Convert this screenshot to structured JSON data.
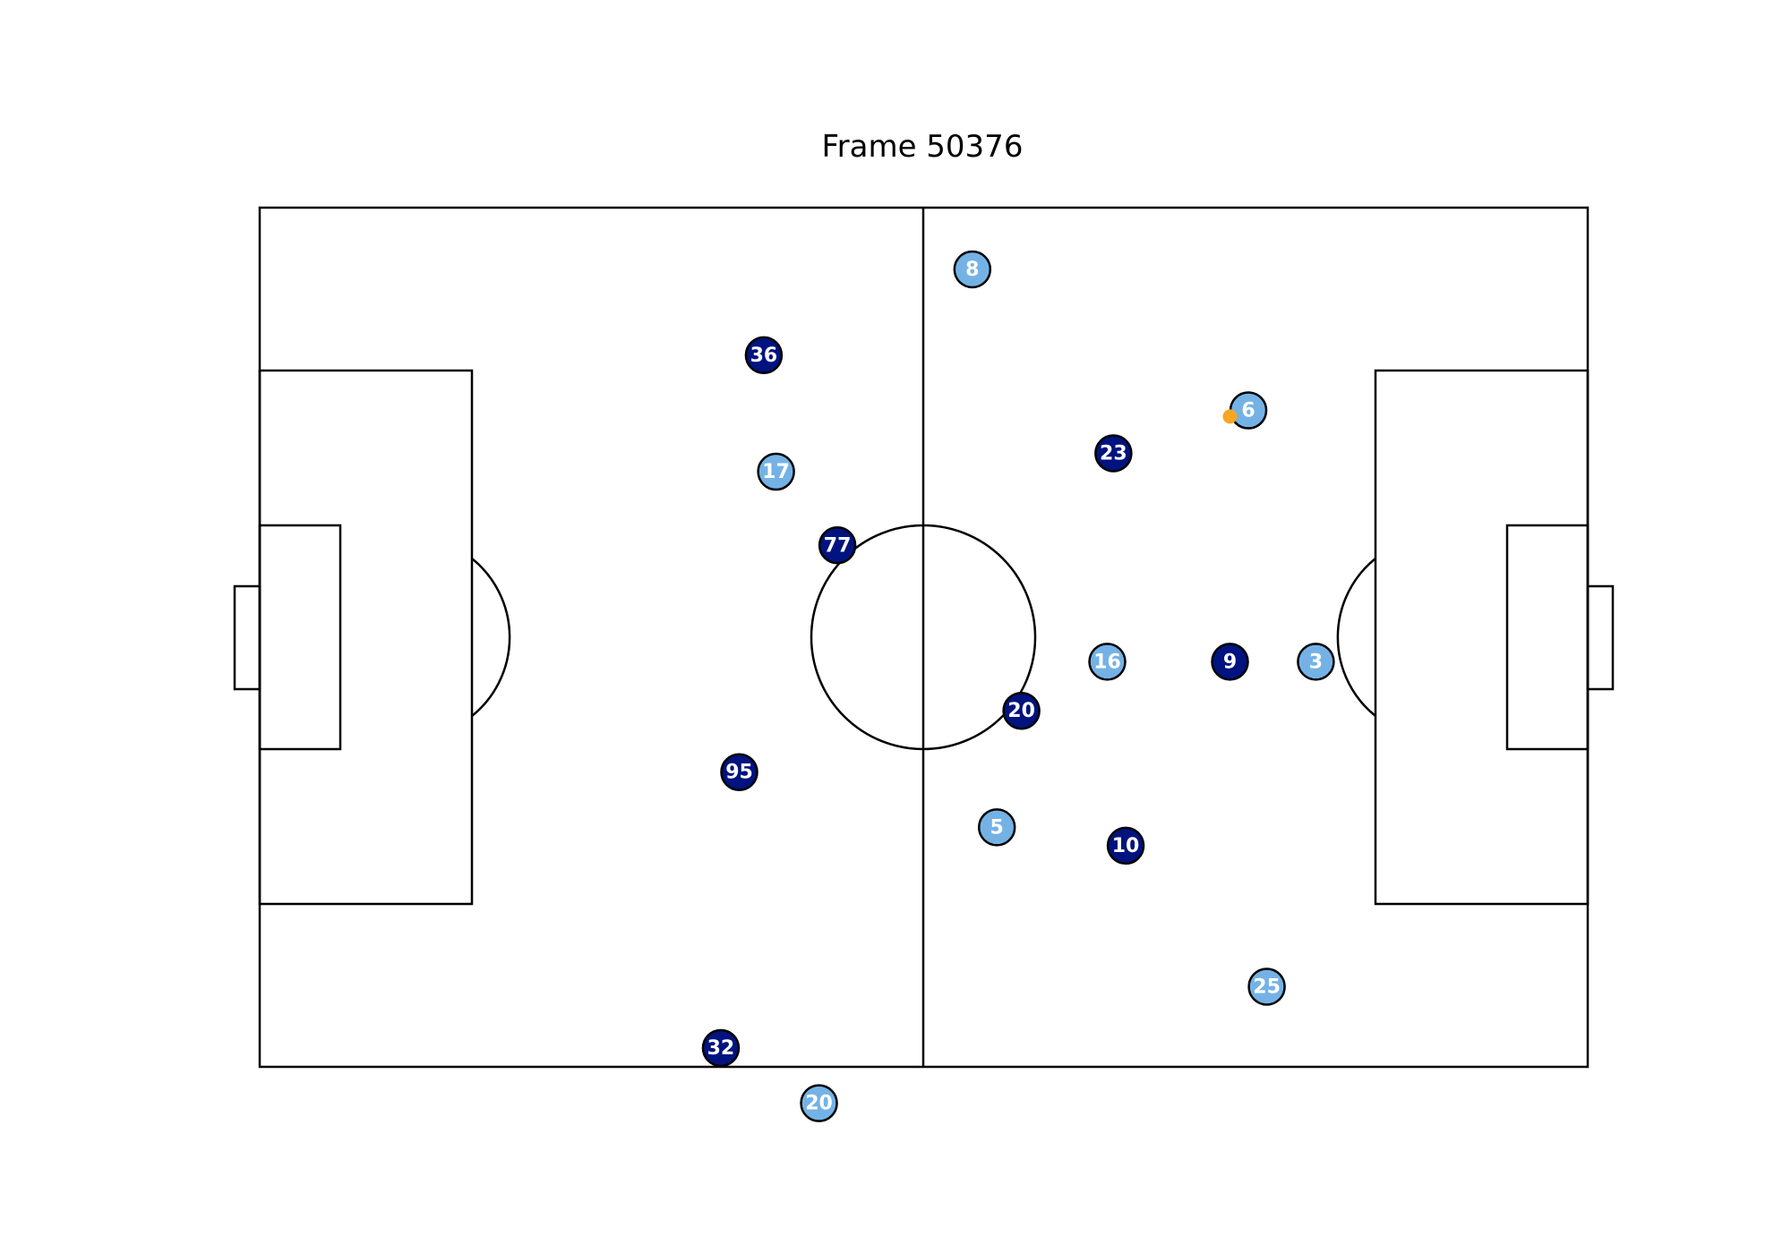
{
  "figure": {
    "title": "Frame 50376"
  },
  "colors": {
    "background": "#ffffff",
    "pitch_line": "#000000",
    "team_dark": "#00137f",
    "team_light": "#74b2e6",
    "ball": "#f5a623",
    "number_text": "#ffffff"
  },
  "teams": {
    "dark": {
      "players": [
        {
          "number": "36",
          "pitch_x": -13.0,
          "pitch_y": 23.0
        },
        {
          "number": "77",
          "pitch_x": -7.0,
          "pitch_y": 7.5
        },
        {
          "number": "23",
          "pitch_x": 15.5,
          "pitch_y": 15.0
        },
        {
          "number": "20",
          "pitch_x": 8.0,
          "pitch_y": -6.0
        },
        {
          "number": "9",
          "pitch_x": 25.0,
          "pitch_y": -2.0
        },
        {
          "number": "95",
          "pitch_x": -15.0,
          "pitch_y": -11.0
        },
        {
          "number": "10",
          "pitch_x": 16.5,
          "pitch_y": -17.0
        },
        {
          "number": "32",
          "pitch_x": -16.5,
          "pitch_y": -33.5
        }
      ]
    },
    "light": {
      "players": [
        {
          "number": "8",
          "pitch_x": 4.0,
          "pitch_y": 30.0
        },
        {
          "number": "6",
          "pitch_x": 26.5,
          "pitch_y": 18.5
        },
        {
          "number": "17",
          "pitch_x": -12.0,
          "pitch_y": 13.5
        },
        {
          "number": "16",
          "pitch_x": 15.0,
          "pitch_y": -2.0
        },
        {
          "number": "3",
          "pitch_x": 32.0,
          "pitch_y": -2.0
        },
        {
          "number": "5",
          "pitch_x": 6.0,
          "pitch_y": -15.5
        },
        {
          "number": "25",
          "pitch_x": 28.0,
          "pitch_y": -28.5
        },
        {
          "number": "20",
          "pitch_x": -8.5,
          "pitch_y": -38.0
        }
      ]
    }
  },
  "ball": {
    "pitch_x": 25.0,
    "pitch_y": 18.0
  }
}
